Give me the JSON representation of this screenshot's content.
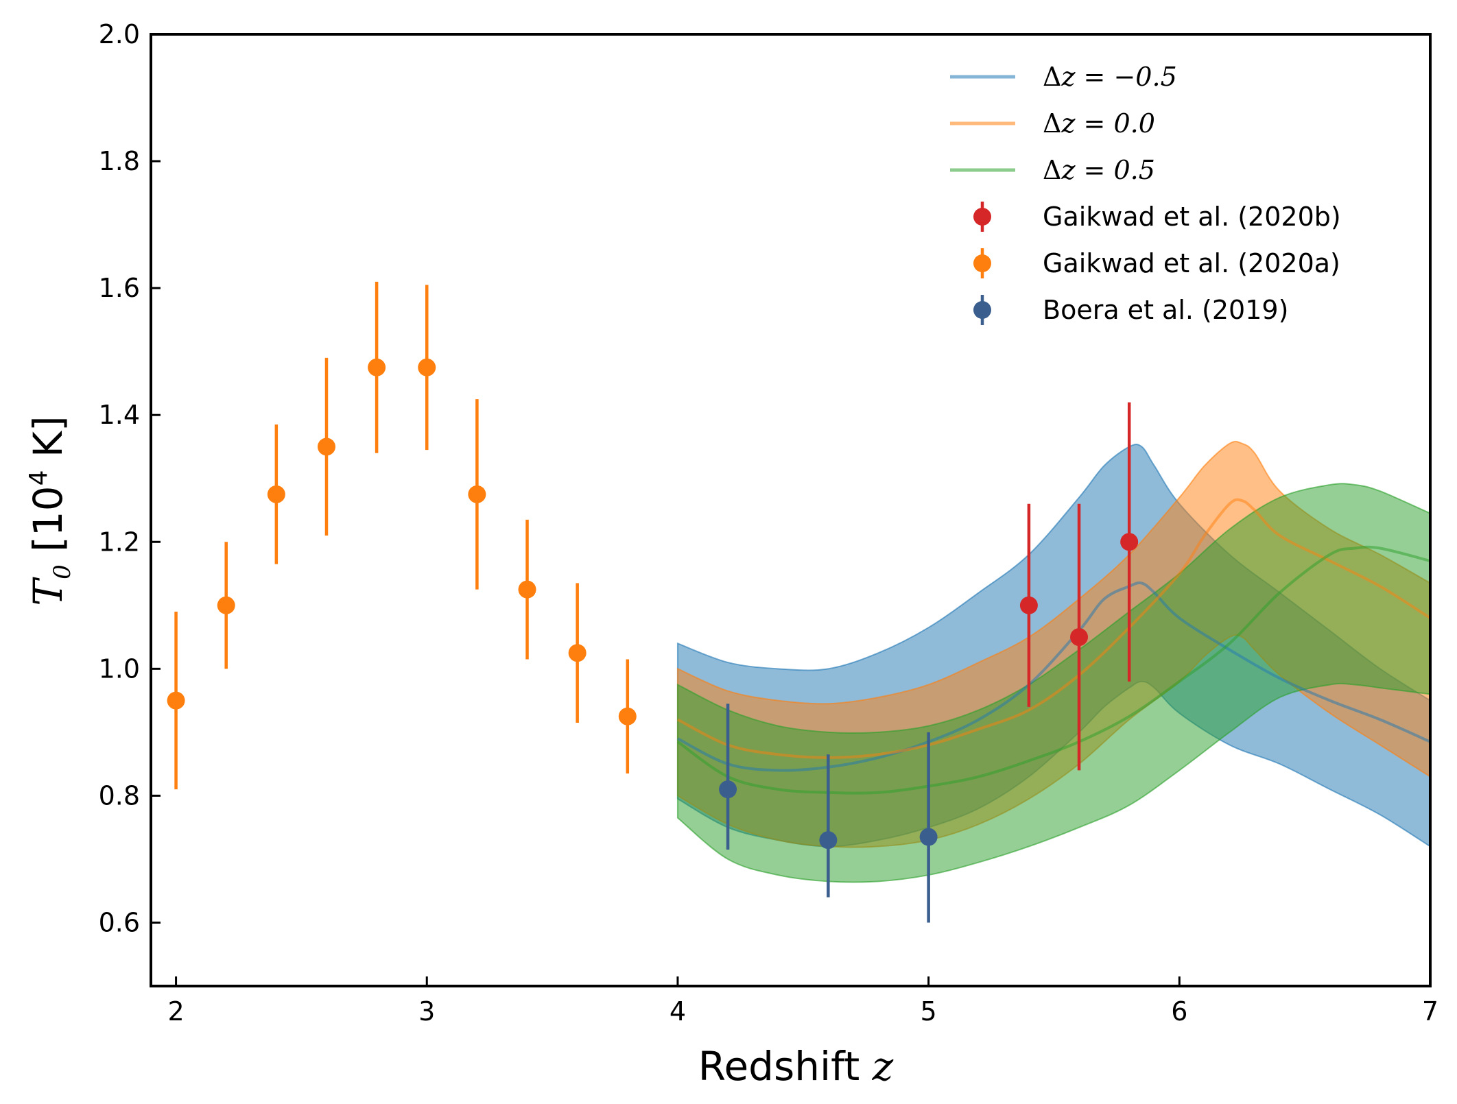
{
  "chart_data": {
    "type": "line",
    "title": "",
    "xlabel": "Redshift",
    "xlabel_symbol": "z",
    "ylabel_symbol": "T",
    "ylabel_subscript": "0",
    "ylabel_unit_pre": "[10",
    "ylabel_unit_exp": "4",
    "ylabel_unit_post": " K]",
    "xlim": [
      1.9,
      7.0
    ],
    "ylim": [
      0.5,
      2.0
    ],
    "xticks": [
      2,
      3,
      4,
      5,
      6,
      7
    ],
    "yticks": [
      0.6,
      0.8,
      1.0,
      1.2,
      1.4,
      1.6,
      1.8,
      2.0
    ],
    "xtick_labels": [
      "2",
      "3",
      "4",
      "5",
      "6",
      "7"
    ],
    "ytick_labels": [
      "0.6",
      "0.8",
      "1.0",
      "1.2",
      "1.4",
      "1.6",
      "1.8",
      "2.0"
    ],
    "legend_position": "top-right",
    "series": [
      {
        "name": "Δz = −0.5",
        "legend_math_prefix": "Δ",
        "legend_math_body": "z = −0.5",
        "color": "#1f77b4",
        "x": [
          4.0,
          4.2,
          4.4,
          4.6,
          4.8,
          5.0,
          5.2,
          5.4,
          5.6,
          5.7,
          5.8,
          5.85,
          5.9,
          6.0,
          6.2,
          6.4,
          6.6,
          6.8,
          7.0
        ],
        "y": [
          0.89,
          0.85,
          0.84,
          0.845,
          0.86,
          0.885,
          0.92,
          0.975,
          1.06,
          1.11,
          1.13,
          1.135,
          1.12,
          1.08,
          1.03,
          0.985,
          0.95,
          0.92,
          0.885
        ],
        "upper": [
          1.04,
          1.01,
          1.0,
          1.0,
          1.025,
          1.065,
          1.12,
          1.18,
          1.27,
          1.32,
          1.35,
          1.35,
          1.32,
          1.26,
          1.18,
          1.12,
          1.06,
          1.0,
          0.95
        ],
        "lower": [
          0.795,
          0.75,
          0.73,
          0.72,
          0.73,
          0.75,
          0.78,
          0.83,
          0.9,
          0.94,
          0.97,
          0.98,
          0.97,
          0.93,
          0.88,
          0.85,
          0.81,
          0.77,
          0.72
        ]
      },
      {
        "name": "Δz = 0.0",
        "legend_math_prefix": "Δ",
        "legend_math_body": "z = 0.0",
        "color": "#ff7f0e",
        "x": [
          4.0,
          4.2,
          4.4,
          4.6,
          4.8,
          5.0,
          5.2,
          5.4,
          5.6,
          5.8,
          6.0,
          6.1,
          6.2,
          6.25,
          6.3,
          6.4,
          6.6,
          6.8,
          7.0
        ],
        "y": [
          0.92,
          0.88,
          0.865,
          0.86,
          0.865,
          0.88,
          0.905,
          0.935,
          0.99,
          1.065,
          1.15,
          1.21,
          1.26,
          1.265,
          1.25,
          1.21,
          1.17,
          1.13,
          1.08
        ],
        "upper": [
          1.0,
          0.965,
          0.95,
          0.945,
          0.955,
          0.975,
          1.01,
          1.05,
          1.11,
          1.18,
          1.27,
          1.32,
          1.355,
          1.355,
          1.34,
          1.28,
          1.22,
          1.18,
          1.135
        ],
        "lower": [
          0.8,
          0.755,
          0.73,
          0.72,
          0.72,
          0.73,
          0.755,
          0.795,
          0.85,
          0.92,
          0.98,
          1.02,
          1.05,
          1.05,
          1.03,
          0.99,
          0.93,
          0.88,
          0.83
        ]
      },
      {
        "name": "Δz = 0.5",
        "legend_math_prefix": "Δ",
        "legend_math_body": "z = 0.5",
        "color": "#2ca02c",
        "x": [
          4.0,
          4.2,
          4.4,
          4.6,
          4.8,
          5.0,
          5.2,
          5.4,
          5.6,
          5.8,
          6.0,
          6.2,
          6.4,
          6.6,
          6.7,
          6.8,
          7.0
        ],
        "y": [
          0.885,
          0.83,
          0.81,
          0.805,
          0.805,
          0.815,
          0.83,
          0.855,
          0.885,
          0.925,
          0.98,
          1.04,
          1.12,
          1.18,
          1.19,
          1.19,
          1.17
        ],
        "upper": [
          0.975,
          0.935,
          0.91,
          0.9,
          0.9,
          0.91,
          0.935,
          0.975,
          1.03,
          1.09,
          1.15,
          1.22,
          1.27,
          1.29,
          1.29,
          1.28,
          1.245
        ],
        "lower": [
          0.765,
          0.7,
          0.675,
          0.665,
          0.665,
          0.675,
          0.695,
          0.72,
          0.75,
          0.785,
          0.84,
          0.9,
          0.955,
          0.975,
          0.975,
          0.97,
          0.96
        ]
      }
    ],
    "observations": [
      {
        "name": "Gaikwad et al. (2020b)",
        "color": "#d62728",
        "x": [
          5.4,
          5.6,
          5.8
        ],
        "y": [
          1.1,
          1.05,
          1.2
        ],
        "yerr_low": [
          0.16,
          0.21,
          0.22
        ],
        "yerr_high": [
          0.16,
          0.21,
          0.22
        ]
      },
      {
        "name": "Gaikwad et al. (2020a)",
        "color": "#ff7f0e",
        "x": [
          2.0,
          2.2,
          2.4,
          2.6,
          2.8,
          3.0,
          3.2,
          3.4,
          3.6,
          3.8
        ],
        "y": [
          0.95,
          1.1,
          1.275,
          1.35,
          1.475,
          1.475,
          1.275,
          1.125,
          1.025,
          0.925
        ],
        "yerr_low": [
          0.14,
          0.1,
          0.11,
          0.14,
          0.135,
          0.13,
          0.15,
          0.11,
          0.11,
          0.09
        ],
        "yerr_high": [
          0.14,
          0.1,
          0.11,
          0.14,
          0.135,
          0.13,
          0.15,
          0.11,
          0.11,
          0.09
        ]
      },
      {
        "name": "Boera et al. (2019)",
        "color": "#3a5f8f",
        "x": [
          4.2,
          4.6,
          5.0
        ],
        "y": [
          0.81,
          0.73,
          0.735
        ],
        "yerr_low": [
          0.095,
          0.09,
          0.135
        ],
        "yerr_high": [
          0.135,
          0.135,
          0.165
        ]
      }
    ]
  }
}
